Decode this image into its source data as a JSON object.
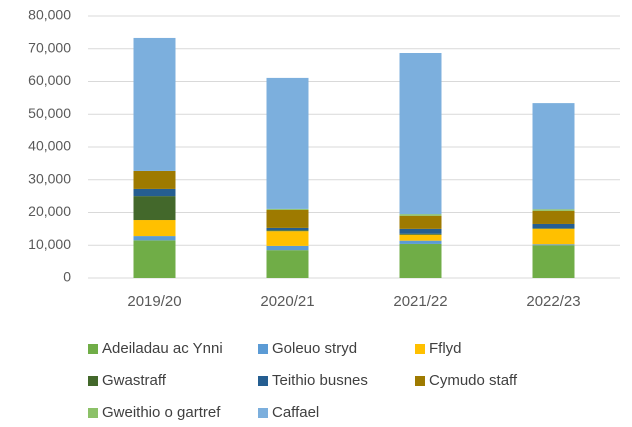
{
  "chart_data": {
    "type": "bar",
    "stacked": true,
    "categories": [
      "2019/20",
      "2020/21",
      "2021/22",
      "2022/23"
    ],
    "series": [
      {
        "name": "Adeiladau ac Ynni",
        "color": "#70ad47",
        "values": [
          11500,
          8500,
          10400,
          10000
        ]
      },
      {
        "name": "Goleuo stryd",
        "color": "#5b9bd5",
        "values": [
          1300,
          1300,
          1000,
          300
        ]
      },
      {
        "name": "Fflyd",
        "color": "#ffc000",
        "values": [
          4900,
          4500,
          1800,
          4700
        ]
      },
      {
        "name": "Gwastraff",
        "color": "#43682b",
        "values": [
          7300,
          300,
          300,
          200
        ]
      },
      {
        "name": "Teithio busnes",
        "color": "#255e91",
        "values": [
          2200,
          700,
          1500,
          1300
        ]
      },
      {
        "name": "Cymudo staff",
        "color": "#9e7a00",
        "values": [
          5500,
          5500,
          4000,
          4000
        ]
      },
      {
        "name": "Gweithio o gartref",
        "color": "#8cc168",
        "values": [
          0,
          300,
          500,
          500
        ]
      },
      {
        "name": "Caffael",
        "color": "#7cafdd",
        "values": [
          40600,
          40000,
          49200,
          32400
        ]
      }
    ],
    "ylim": [
      0,
      80000
    ],
    "yticks": [
      0,
      {
        "value": 10000,
        "label": "10,000"
      },
      {
        "value": 20000,
        "label": "20,000"
      },
      {
        "value": 30000,
        "label": "30,000"
      },
      {
        "value": 40000,
        "label": "40,000"
      },
      {
        "value": 50000,
        "label": "50,000"
      },
      {
        "value": 60000,
        "label": "60,000"
      },
      {
        "value": 70000,
        "label": "70,000"
      },
      {
        "value": 80000,
        "label": "80,000"
      }
    ],
    "grid": true,
    "legend": "bottom"
  }
}
